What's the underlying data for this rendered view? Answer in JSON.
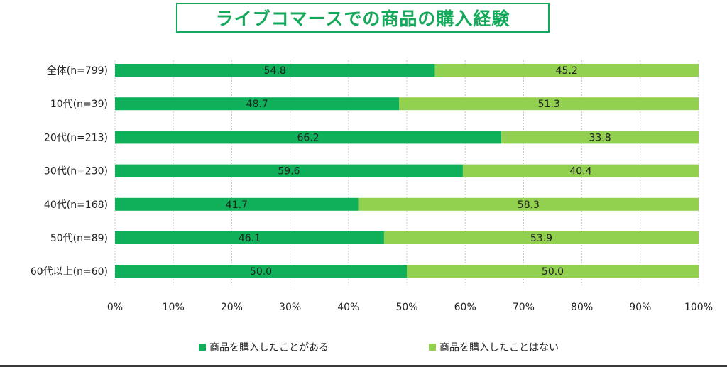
{
  "title": "ライブコマースでの商品の購入経験",
  "colors": {
    "title": "#14a85a",
    "series1": "#10b05a",
    "series2": "#92d050",
    "grid": "#c8c8c8",
    "text": "#222222"
  },
  "chart_data": {
    "type": "bar",
    "orientation": "horizontal",
    "stacked": "100%",
    "title": "ライブコマースでの商品の購入経験",
    "categories": [
      "全体(n=799)",
      "10代(n=39)",
      "20代(n=213)",
      "30代(n=230)",
      "40代(n=168)",
      "50代(n=89)",
      "60代以上(n=60)"
    ],
    "series": [
      {
        "name": "商品を購入したことがある",
        "values": [
          54.8,
          48.7,
          66.2,
          59.6,
          41.7,
          46.1,
          50.0
        ]
      },
      {
        "name": "商品を購入したことはない",
        "values": [
          45.2,
          51.3,
          33.8,
          40.4,
          58.3,
          53.9,
          50.0
        ]
      }
    ],
    "value_labels": [
      [
        "54.8",
        "48.7",
        "66.2",
        "59.6",
        "41.7",
        "46.1",
        "50.0"
      ],
      [
        "45.2",
        "51.3",
        "33.8",
        "40.4",
        "58.3",
        "53.9",
        "50.0"
      ]
    ],
    "xlim": [
      0,
      100
    ],
    "xticks": [
      "0%",
      "10%",
      "20%",
      "30%",
      "40%",
      "50%",
      "60%",
      "70%",
      "80%",
      "90%",
      "100%"
    ],
    "xlabel": "",
    "ylabel": "",
    "grid": true,
    "legend_position": "bottom"
  }
}
